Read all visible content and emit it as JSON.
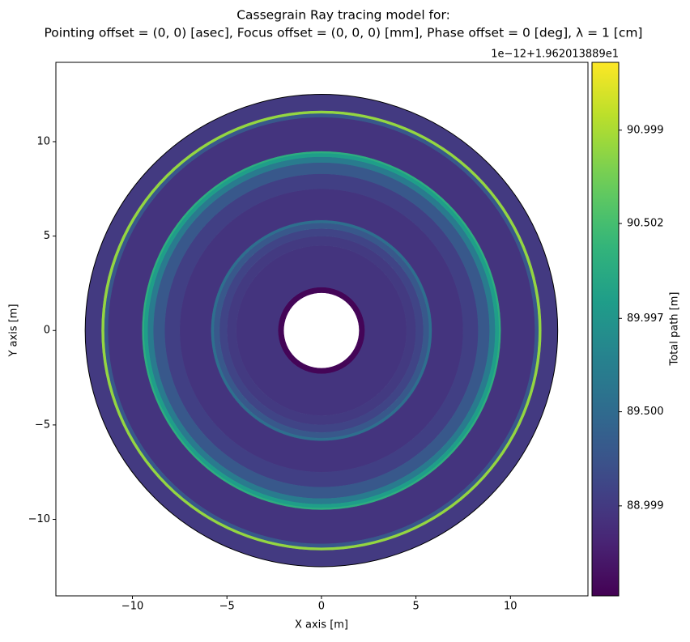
{
  "chart_data": {
    "type": "radial-image",
    "title": "Cassegrain Ray tracing model for:",
    "subtitle": "Pointing offset = (0, 0) [asec], Focus offset = (0, 0, 0) [mm], Phase offset = 0 [deg], λ = 1 [cm]",
    "x_label": "X axis [m]",
    "y_label": "Y axis [m]",
    "colorbar_label": "Total path [m]",
    "colorbar_offset": "1e−12+1.962013889e1",
    "colormap": "viridis",
    "radii": [
      2.0,
      2.3,
      4.5,
      5.0,
      5.4,
      5.7,
      5.85,
      7.5,
      8.3,
      8.9,
      9.2,
      9.4,
      9.5,
      11.3,
      11.5,
      11.65,
      12.5
    ],
    "values": [
      88.55,
      88.95,
      89.0,
      89.1,
      89.3,
      89.55,
      88.95,
      89.05,
      89.3,
      89.7,
      90.1,
      90.3,
      88.95,
      89.3,
      90.9,
      89.0
    ],
    "xlim": [
      -14.05,
      14.1
    ],
    "ylim": [
      -14.05,
      14.2
    ],
    "xticks": [
      {
        "value": -10,
        "label": "−10"
      },
      {
        "value": -5,
        "label": "−5"
      },
      0,
      5,
      10
    ],
    "yticks": [
      {
        "value": -10,
        "label": "−10"
      },
      {
        "value": -5,
        "label": "−5"
      },
      0,
      5,
      10
    ],
    "clim": [
      88.52,
      91.36
    ],
    "cticks": [
      88.999,
      {
        "value": 89.5,
        "label": "89.500"
      },
      89.997,
      90.502,
      90.999
    ]
  }
}
